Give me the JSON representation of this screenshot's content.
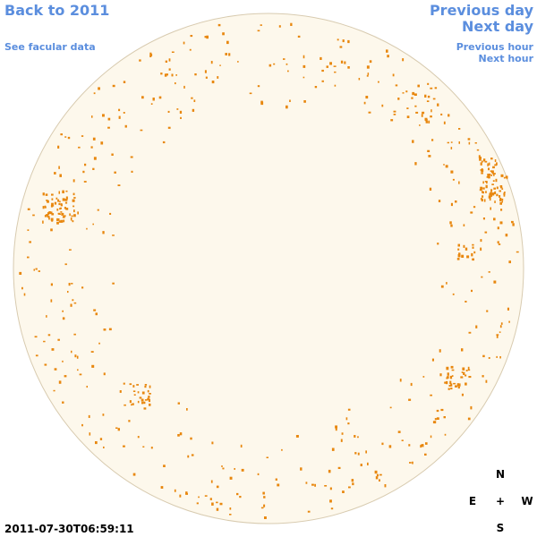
{
  "nav": {
    "back": "Back to 2011",
    "facular_data": "See facular data",
    "previous_day": "Previous day",
    "next_day": "Next day",
    "previous_hour": "Previous hour",
    "next_hour": "Next hour"
  },
  "compass": {
    "north": "N",
    "east": "E",
    "center": "+",
    "west": "W",
    "south": "S"
  },
  "timestamp": "2011-07-30T06:59:11"
}
